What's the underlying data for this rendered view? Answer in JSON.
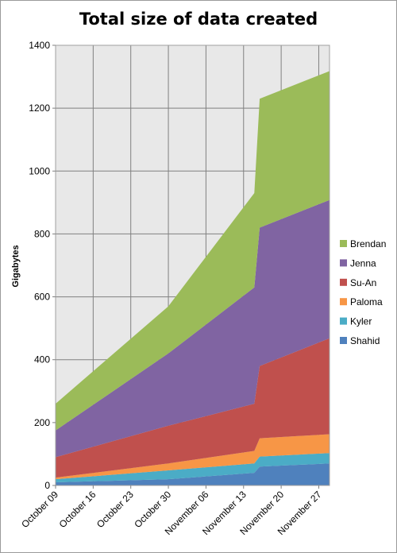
{
  "chart_data": {
    "type": "area",
    "stacked": true,
    "title": "Total size of data created",
    "xlabel": "",
    "ylabel": "Gigabytes",
    "ylim": [
      0,
      1400
    ],
    "yticks": [
      0,
      200,
      400,
      600,
      800,
      1000,
      1200,
      1400
    ],
    "grid": true,
    "legend_position": "right",
    "x_tick_labels": [
      "October 09",
      "October 16",
      "October 23",
      "October 30",
      "November 06",
      "November 13",
      "November 20",
      "November 27"
    ],
    "x": [
      "2012-10-09",
      "2012-10-30",
      "2012-11-15",
      "2012-11-16",
      "2012-11-29"
    ],
    "series": [
      {
        "name": "Shahid",
        "color": "#4F81BD",
        "values": [
          10,
          20,
          40,
          60,
          70
        ]
      },
      {
        "name": "Kyler",
        "color": "#4BACC6",
        "values": [
          10,
          28,
          30,
          32,
          33
        ]
      },
      {
        "name": "Paloma",
        "color": "#F79646",
        "values": [
          5,
          22,
          40,
          58,
          60
        ]
      },
      {
        "name": "Su-An",
        "color": "#C0504D",
        "values": [
          65,
          120,
          150,
          230,
          305
        ]
      },
      {
        "name": "Jenna",
        "color": "#8064A2",
        "values": [
          85,
          230,
          370,
          440,
          440
        ]
      },
      {
        "name": "Brendan",
        "color": "#9BBB59",
        "values": [
          85,
          150,
          300,
          410,
          410
        ]
      }
    ]
  }
}
